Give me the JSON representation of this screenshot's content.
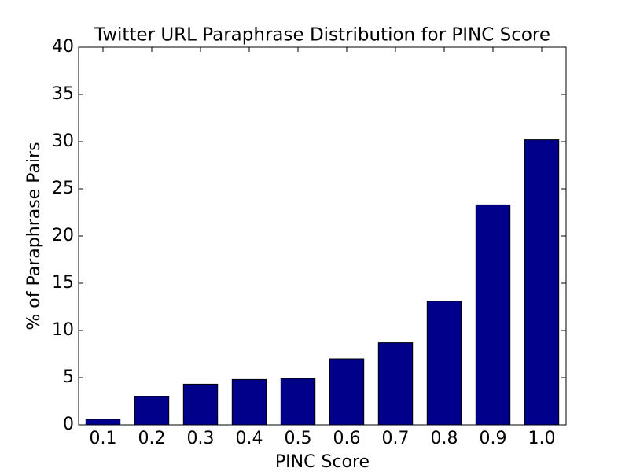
{
  "chart_data": {
    "type": "bar",
    "title": "Twitter URL Paraphrase Distribution for PINC Score",
    "x_label": "PINC Score",
    "y_label": "% of Paraphrase Pairs",
    "categories": [
      "0.1",
      "0.2",
      "0.3",
      "0.4",
      "0.5",
      "0.6",
      "0.7",
      "0.8",
      "0.9",
      "1.0"
    ],
    "values": [
      0.6,
      3.0,
      4.3,
      4.8,
      4.9,
      7.0,
      8.7,
      13.1,
      23.3,
      30.2
    ],
    "color": "#00008b",
    "ylim": [
      0,
      40
    ],
    "yticks": [
      0,
      5,
      10,
      15,
      20,
      25,
      30,
      35,
      40
    ],
    "grid": false
  }
}
